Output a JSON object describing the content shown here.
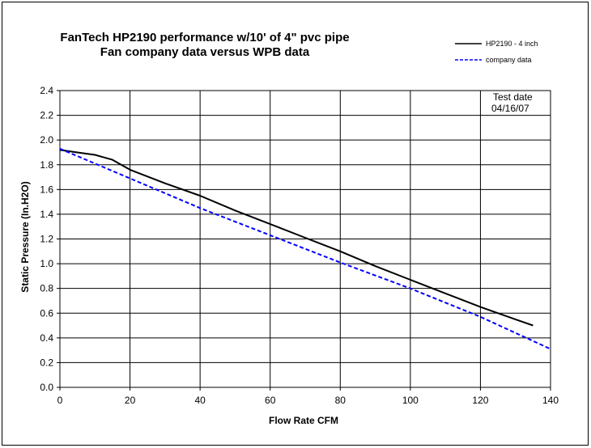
{
  "chart_data": {
    "type": "line",
    "title_line1": "FanTech HP2190 performance w/10' of 4\" pvc pipe",
    "title_line2": "Fan company data versus WPB data",
    "xlabel": "Flow Rate CFM",
    "ylabel": "Static Pressure (In.H2O)",
    "xlim": [
      0,
      140
    ],
    "ylim": [
      0,
      2.4
    ],
    "xticks": [
      "0",
      "20",
      "40",
      "60",
      "80",
      "100",
      "120",
      "140"
    ],
    "yticks": [
      "0.0",
      "0.2",
      "0.4",
      "0.6",
      "0.8",
      "1.0",
      "1.2",
      "1.4",
      "1.6",
      "1.8",
      "2.0",
      "2.2",
      "2.4"
    ],
    "grid": true,
    "legend_position": "top-right",
    "annotation_line1": "Test date",
    "annotation_line2": "04/16/07",
    "series": [
      {
        "name": "HP2190 - 4 inch",
        "color": "#000000",
        "style": "solid",
        "x": [
          0,
          5,
          10,
          15,
          20,
          30,
          40,
          50,
          60,
          70,
          80,
          90,
          100,
          110,
          120,
          130,
          135
        ],
        "y": [
          1.92,
          1.9,
          1.88,
          1.84,
          1.76,
          1.65,
          1.55,
          1.43,
          1.32,
          1.21,
          1.1,
          0.98,
          0.87,
          0.76,
          0.65,
          0.55,
          0.5
        ]
      },
      {
        "name": "company data",
        "color": "#0000ff",
        "style": "dashed",
        "x": [
          0,
          20,
          40,
          60,
          80,
          100,
          120,
          140
        ],
        "y": [
          1.93,
          1.69,
          1.45,
          1.23,
          1.01,
          0.8,
          0.57,
          0.31
        ]
      }
    ]
  }
}
